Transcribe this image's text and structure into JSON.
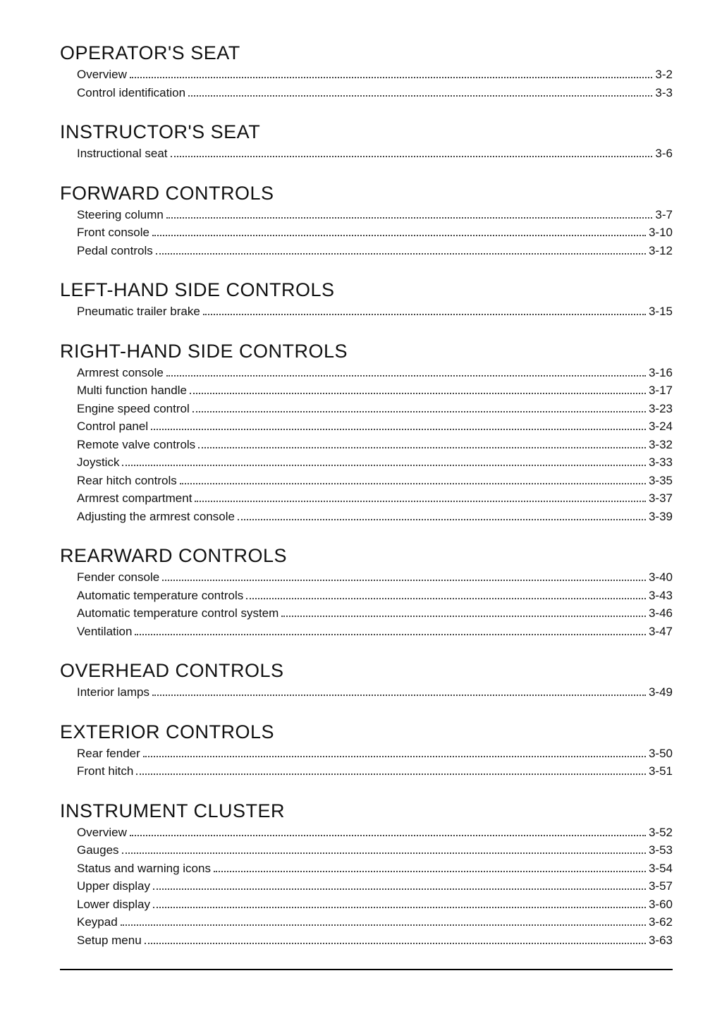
{
  "page": {
    "background": "#ffffff",
    "text_color": "#111111",
    "title_fontsize": 27,
    "item_fontsize": 17,
    "dot_color": "#444444"
  },
  "sections": [
    {
      "title": "OPERATOR'S SEAT",
      "items": [
        {
          "label": "Overview",
          "page": "3-2"
        },
        {
          "label": "Control identification",
          "page": "3-3"
        }
      ]
    },
    {
      "title": "INSTRUCTOR'S SEAT",
      "items": [
        {
          "label": "Instructional seat",
          "page": "3-6"
        }
      ]
    },
    {
      "title": "FORWARD CONTROLS",
      "items": [
        {
          "label": "Steering column",
          "page": "3-7"
        },
        {
          "label": "Front console",
          "page": "3-10"
        },
        {
          "label": "Pedal controls",
          "page": "3-12"
        }
      ]
    },
    {
      "title": "LEFT-HAND SIDE CONTROLS",
      "items": [
        {
          "label": "Pneumatic trailer brake",
          "page": "3-15"
        }
      ]
    },
    {
      "title": "RIGHT-HAND SIDE CONTROLS",
      "items": [
        {
          "label": "Armrest console",
          "page": "3-16"
        },
        {
          "label": "Multi function handle",
          "page": "3-17"
        },
        {
          "label": "Engine speed control",
          "page": "3-23"
        },
        {
          "label": "Control panel",
          "page": "3-24"
        },
        {
          "label": "Remote valve controls",
          "page": "3-32"
        },
        {
          "label": "Joystick",
          "page": "3-33"
        },
        {
          "label": "Rear hitch controls",
          "page": "3-35"
        },
        {
          "label": "Armrest compartment",
          "page": "3-37"
        },
        {
          "label": "Adjusting the armrest console",
          "page": "3-39"
        }
      ]
    },
    {
      "title": "REARWARD CONTROLS",
      "items": [
        {
          "label": "Fender console",
          "page": "3-40"
        },
        {
          "label": "Automatic temperature controls",
          "page": "3-43"
        },
        {
          "label": "Automatic temperature control system",
          "page": "3-46"
        },
        {
          "label": "Ventilation",
          "page": "3-47"
        }
      ]
    },
    {
      "title": "OVERHEAD CONTROLS",
      "items": [
        {
          "label": "Interior lamps",
          "page": "3-49"
        }
      ]
    },
    {
      "title": "EXTERIOR CONTROLS",
      "items": [
        {
          "label": "Rear fender",
          "page": "3-50"
        },
        {
          "label": "Front hitch",
          "page": "3-51"
        }
      ]
    },
    {
      "title": "INSTRUMENT CLUSTER",
      "items": [
        {
          "label": "Overview",
          "page": "3-52"
        },
        {
          "label": "Gauges",
          "page": "3-53"
        },
        {
          "label": "Status and warning icons",
          "page": "3-54"
        },
        {
          "label": "Upper display",
          "page": "3-57"
        },
        {
          "label": "Lower display",
          "page": "3-60"
        },
        {
          "label": "Keypad",
          "page": "3-62"
        },
        {
          "label": "Setup menu",
          "page": "3-63"
        }
      ]
    }
  ]
}
